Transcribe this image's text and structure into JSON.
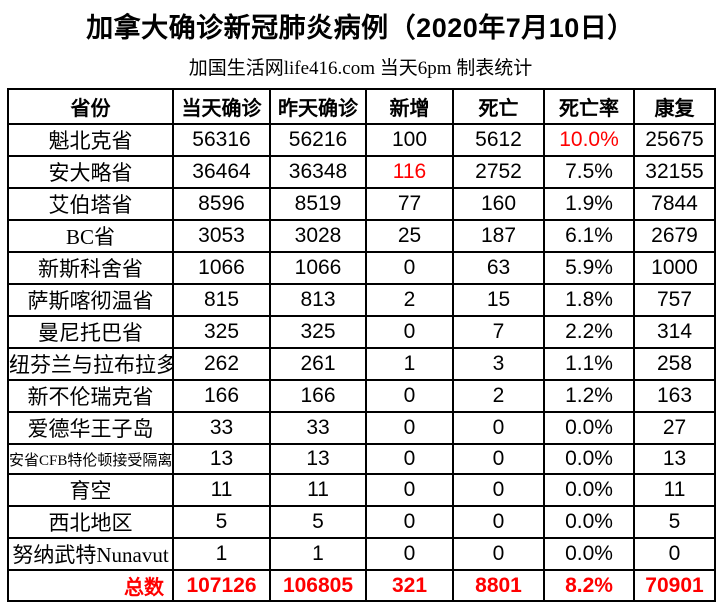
{
  "colors": {
    "accent_red": "#ff0000",
    "border": "#000000",
    "background": "#ffffff",
    "text": "#000000"
  },
  "chart_data": {
    "type": "table",
    "title": "加拿大确诊新冠肺炎病例（2020年7月10日）",
    "subtitle": "加国生活网life416.com 当天6pm 制表统计",
    "columns": [
      "省份",
      "当天确诊",
      "昨天确诊",
      "新增",
      "死亡",
      "死亡率",
      "康复"
    ],
    "rows": [
      {
        "province": "魁北克省",
        "small": false,
        "values": [
          "56316",
          "56216",
          "100",
          "5612",
          "10.0%",
          "25675"
        ],
        "styles": [
          "",
          "",
          "",
          "",
          "red bold",
          ""
        ]
      },
      {
        "province": "安大略省",
        "small": false,
        "values": [
          "36464",
          "36348",
          "116",
          "2752",
          "7.5%",
          "32155"
        ],
        "styles": [
          "",
          "",
          "red bold",
          "",
          "",
          ""
        ]
      },
      {
        "province": "艾伯塔省",
        "small": false,
        "values": [
          "8596",
          "8519",
          "77",
          "160",
          "1.9%",
          "7844"
        ],
        "styles": [
          "",
          "",
          "",
          "",
          "bold",
          ""
        ]
      },
      {
        "province": "BC省",
        "small": false,
        "values": [
          "3053",
          "3028",
          "25",
          "187",
          "6.1%",
          "2679"
        ],
        "styles": [
          "",
          "",
          "",
          "",
          "bold",
          ""
        ]
      },
      {
        "province": "新斯科舍省",
        "small": false,
        "values": [
          "1066",
          "1066",
          "0",
          "63",
          "5.9%",
          "1000"
        ],
        "styles": [
          "",
          "",
          "",
          "",
          "bold",
          ""
        ]
      },
      {
        "province": "萨斯喀彻温省",
        "small": false,
        "values": [
          "815",
          "813",
          "2",
          "15",
          "1.8%",
          "757"
        ],
        "styles": [
          "",
          "",
          "",
          "",
          "bold",
          ""
        ]
      },
      {
        "province": "曼尼托巴省",
        "small": false,
        "values": [
          "325",
          "325",
          "0",
          "7",
          "2.2%",
          "314"
        ],
        "styles": [
          "",
          "",
          "",
          "",
          "bold",
          ""
        ]
      },
      {
        "province": "纽芬兰与拉布拉多",
        "small": false,
        "values": [
          "262",
          "261",
          "1",
          "3",
          "1.1%",
          "258"
        ],
        "styles": [
          "",
          "",
          "",
          "",
          "bold",
          ""
        ]
      },
      {
        "province": "新不伦瑞克省",
        "small": false,
        "values": [
          "166",
          "166",
          "0",
          "2",
          "1.2%",
          "163"
        ],
        "styles": [
          "",
          "",
          "",
          "",
          "bold",
          ""
        ]
      },
      {
        "province": "爱德华王子岛",
        "small": false,
        "values": [
          "33",
          "33",
          "0",
          "0",
          "0.0%",
          "27"
        ],
        "styles": [
          "",
          "",
          "",
          "",
          "bold",
          ""
        ]
      },
      {
        "province": "安省CFB特伦顿接受隔离",
        "small": true,
        "values": [
          "13",
          "13",
          "0",
          "0",
          "0.0%",
          "13"
        ],
        "styles": [
          "",
          "",
          "",
          "",
          "bold",
          ""
        ]
      },
      {
        "province": "育空",
        "small": false,
        "values": [
          "11",
          "11",
          "0",
          "0",
          "0.0%",
          "11"
        ],
        "styles": [
          "",
          "",
          "",
          "",
          "bold",
          ""
        ]
      },
      {
        "province": "西北地区",
        "small": false,
        "values": [
          "5",
          "5",
          "0",
          "0",
          "0.0%",
          "5"
        ],
        "styles": [
          "",
          "",
          "",
          "",
          "bold",
          ""
        ]
      },
      {
        "province": "努纳武特Nunavut",
        "small": false,
        "values": [
          "1",
          "1",
          "0",
          "0",
          "0.0%",
          "0"
        ],
        "styles": [
          "",
          "",
          "",
          "",
          "bold",
          ""
        ]
      }
    ],
    "totals": {
      "label": "总数",
      "values": [
        "107126",
        "106805",
        "321",
        "8801",
        "8.2%",
        "70901"
      ]
    }
  }
}
